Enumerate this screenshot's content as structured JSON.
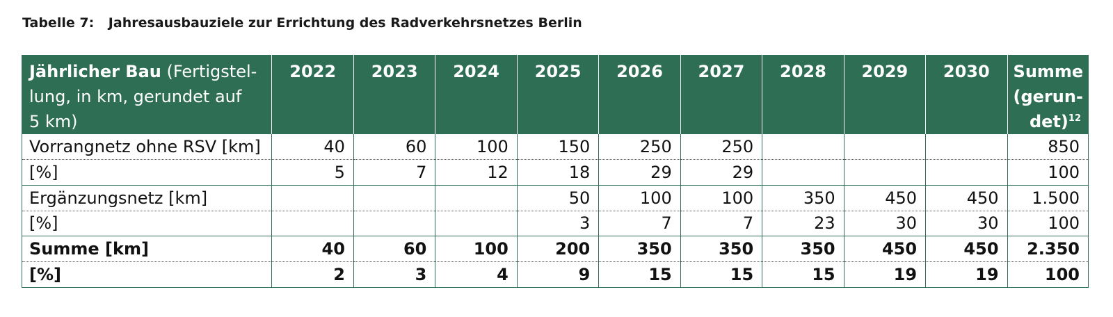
{
  "caption": {
    "number": "Tabelle 7:",
    "title": "Jahresausbauziele zur Errichtung des Radverkehrsnetzes Berlin"
  },
  "table": {
    "header": {
      "row_label_bold": "Jährlicher Bau",
      "row_label_line1_rest": " (Fertigstel-",
      "row_label_line2": "lung, in km, gerundet auf",
      "row_label_line3": "5 km)",
      "years": [
        "2022",
        "2023",
        "2024",
        "2025",
        "2026",
        "2027",
        "2028",
        "2029",
        "2030"
      ],
      "sum_line1": "Summe",
      "sum_line2": "(gerun-",
      "sum_line3": "det)",
      "sum_footnote": "12"
    },
    "rows": [
      {
        "label": "Vorrangnetz ohne RSV [km]",
        "values": [
          "40",
          "60",
          "100",
          "150",
          "250",
          "250",
          "",
          "",
          ""
        ],
        "sum": "850"
      },
      {
        "label": "[%]",
        "values": [
          "5",
          "7",
          "12",
          "18",
          "29",
          "29",
          "",
          "",
          ""
        ],
        "sum": "100"
      },
      {
        "label": "Ergänzungsnetz [km]",
        "values": [
          "",
          "",
          "",
          "50",
          "100",
          "100",
          "350",
          "450",
          "450"
        ],
        "sum": "1.500"
      },
      {
        "label": "[%]",
        "values": [
          "",
          "",
          "",
          "3",
          "7",
          "7",
          "23",
          "30",
          "30"
        ],
        "sum": "100"
      },
      {
        "label": "Summe [km]",
        "values": [
          "40",
          "60",
          "100",
          "200",
          "350",
          "350",
          "350",
          "450",
          "450"
        ],
        "sum": "2.350"
      },
      {
        "label": "[%]",
        "values": [
          "2",
          "3",
          "4",
          "9",
          "15",
          "15",
          "15",
          "19",
          "19"
        ],
        "sum": "100"
      }
    ]
  },
  "colors": {
    "header_bg": "#2e6e55",
    "header_text": "#ffffff",
    "border": "#2e6e55"
  }
}
